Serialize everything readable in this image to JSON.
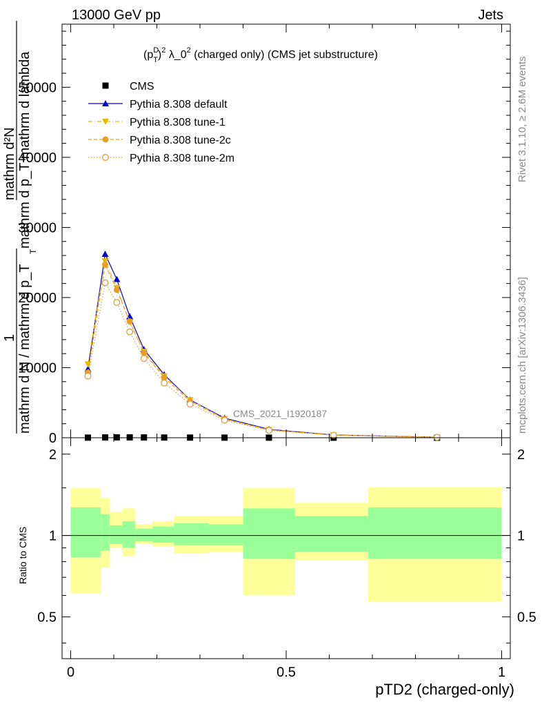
{
  "header": {
    "left": "13000 GeV pp",
    "right": "Jets"
  },
  "side": {
    "rivet": "Rivet 3.1.10, ≥ 2.6M events",
    "mcplots": "mcplots.cern.ch [arXiv:1306.3436]"
  },
  "chart_data": {
    "type": "line",
    "title": "(p_T^D)^2 λ_0^2 (charged only) (CMS jet substructure)",
    "title_parts": {
      "a": "(p",
      "sup_d": "D",
      "sub_t": "T",
      "b": ")",
      "sup_2": "2",
      "c": " λ_0",
      "sup_2b": "2",
      "d": " (charged only) (CMS jet substructure)"
    },
    "watermark": "CMS_2021_I1920187",
    "xlabel": "pTD2 (charged-only)",
    "ylabel": {
      "frac_num": "1",
      "frac_den": "mathrm d N / mathrm d p_T",
      "sub_t": "T",
      "second": "mathrm d²N",
      "second_den": "mathrm d p_T mathrm d lambda"
    },
    "ratio_ylabel": "Ratio to CMS",
    "xlim": [
      -0.02,
      1.02
    ],
    "ylim": [
      0,
      59000
    ],
    "ratio_ylim": [
      0.35,
      2.3
    ],
    "x_ticks": [
      "0",
      "0.5",
      "1"
    ],
    "x_tick_values": [
      0,
      0.5,
      1
    ],
    "y_ticks": [
      "0",
      "10000",
      "20000",
      "30000",
      "40000",
      "50000"
    ],
    "y_tick_values": [
      0,
      10000,
      20000,
      30000,
      40000,
      50000
    ],
    "ratio_ticks": [
      "0.5",
      "1",
      "2"
    ],
    "ratio_tick_values": [
      0.5,
      1,
      2
    ],
    "legend_position": "top-left",
    "colors": {
      "cms": "#000000",
      "default": "#0000cc",
      "tune1": "#e6b800",
      "tune2c": "#e8a020",
      "tune2m": "#e09a40",
      "band_inner": "#99ff99",
      "band_outer": "#ffff99"
    },
    "series": [
      {
        "name": "CMS",
        "marker": "square",
        "x": [
          0.04,
          0.08,
          0.107,
          0.137,
          0.17,
          0.217,
          0.277,
          0.357,
          0.46,
          0.61,
          0.85
        ],
        "values": [
          15,
          40,
          55,
          50,
          40,
          30,
          20,
          15,
          10,
          5,
          2
        ]
      },
      {
        "name": "Pythia 8.308 default",
        "marker": "triangle-up",
        "line": "solid",
        "x": [
          0.04,
          0.08,
          0.107,
          0.137,
          0.17,
          0.217,
          0.277,
          0.357,
          0.46,
          0.61,
          0.85
        ],
        "values": [
          9800,
          26200,
          22600,
          17300,
          12600,
          9000,
          5400,
          2800,
          1200,
          400,
          80
        ]
      },
      {
        "name": "Pythia 8.308 tune-1",
        "marker": "triangle-down",
        "line": "dashdot",
        "x": [
          0.04,
          0.08,
          0.107,
          0.137,
          0.17,
          0.217,
          0.277,
          0.357,
          0.46,
          0.61,
          0.85
        ],
        "values": [
          10500,
          25200,
          21400,
          16500,
          12300,
          8800,
          5400,
          2700,
          1150,
          380,
          80
        ]
      },
      {
        "name": "Pythia 8.308 tune-2c",
        "marker": "circle",
        "line": "dashed",
        "x": [
          0.04,
          0.08,
          0.107,
          0.137,
          0.17,
          0.217,
          0.277,
          0.357,
          0.46,
          0.61,
          0.85
        ],
        "values": [
          9300,
          24700,
          21100,
          16600,
          12100,
          8600,
          5200,
          2650,
          1100,
          370,
          75
        ]
      },
      {
        "name": "Pythia 8.308 tune-2m",
        "marker": "open-circle",
        "line": "dotted",
        "x": [
          0.04,
          0.08,
          0.107,
          0.137,
          0.17,
          0.217,
          0.277,
          0.357,
          0.46,
          0.61,
          0.85
        ],
        "values": [
          8800,
          22100,
          19300,
          15100,
          11300,
          7800,
          4800,
          2500,
          1050,
          350,
          70
        ]
      }
    ],
    "ratio_bands": [
      {
        "x0": 0.0,
        "x1": 0.07,
        "inner": [
          0.83,
          1.27
        ],
        "outer": [
          0.61,
          1.5
        ]
      },
      {
        "x0": 0.07,
        "x1": 0.09,
        "inner": [
          0.88,
          1.2
        ],
        "outer": [
          0.76,
          1.38
        ]
      },
      {
        "x0": 0.09,
        "x1": 0.12,
        "inner": [
          0.93,
          1.09
        ],
        "outer": [
          0.9,
          1.22
        ]
      },
      {
        "x0": 0.12,
        "x1": 0.15,
        "inner": [
          0.9,
          1.13
        ],
        "outer": [
          0.84,
          1.26
        ]
      },
      {
        "x0": 0.15,
        "x1": 0.19,
        "inner": [
          0.95,
          1.06
        ],
        "outer": [
          0.93,
          1.1
        ]
      },
      {
        "x0": 0.19,
        "x1": 0.24,
        "inner": [
          0.94,
          1.08
        ],
        "outer": [
          0.91,
          1.13
        ]
      },
      {
        "x0": 0.24,
        "x1": 0.32,
        "inner": [
          0.92,
          1.11
        ],
        "outer": [
          0.86,
          1.18
        ]
      },
      {
        "x0": 0.32,
        "x1": 0.4,
        "inner": [
          0.92,
          1.1
        ],
        "outer": [
          0.87,
          1.18
        ]
      },
      {
        "x0": 0.4,
        "x1": 0.52,
        "inner": [
          0.82,
          1.26
        ],
        "outer": [
          0.6,
          1.5
        ]
      },
      {
        "x0": 0.52,
        "x1": 0.69,
        "inner": [
          0.87,
          1.18
        ],
        "outer": [
          0.81,
          1.32
        ]
      },
      {
        "x0": 0.69,
        "x1": 1.0,
        "inner": [
          0.82,
          1.27
        ],
        "outer": [
          0.57,
          1.51
        ]
      }
    ]
  }
}
